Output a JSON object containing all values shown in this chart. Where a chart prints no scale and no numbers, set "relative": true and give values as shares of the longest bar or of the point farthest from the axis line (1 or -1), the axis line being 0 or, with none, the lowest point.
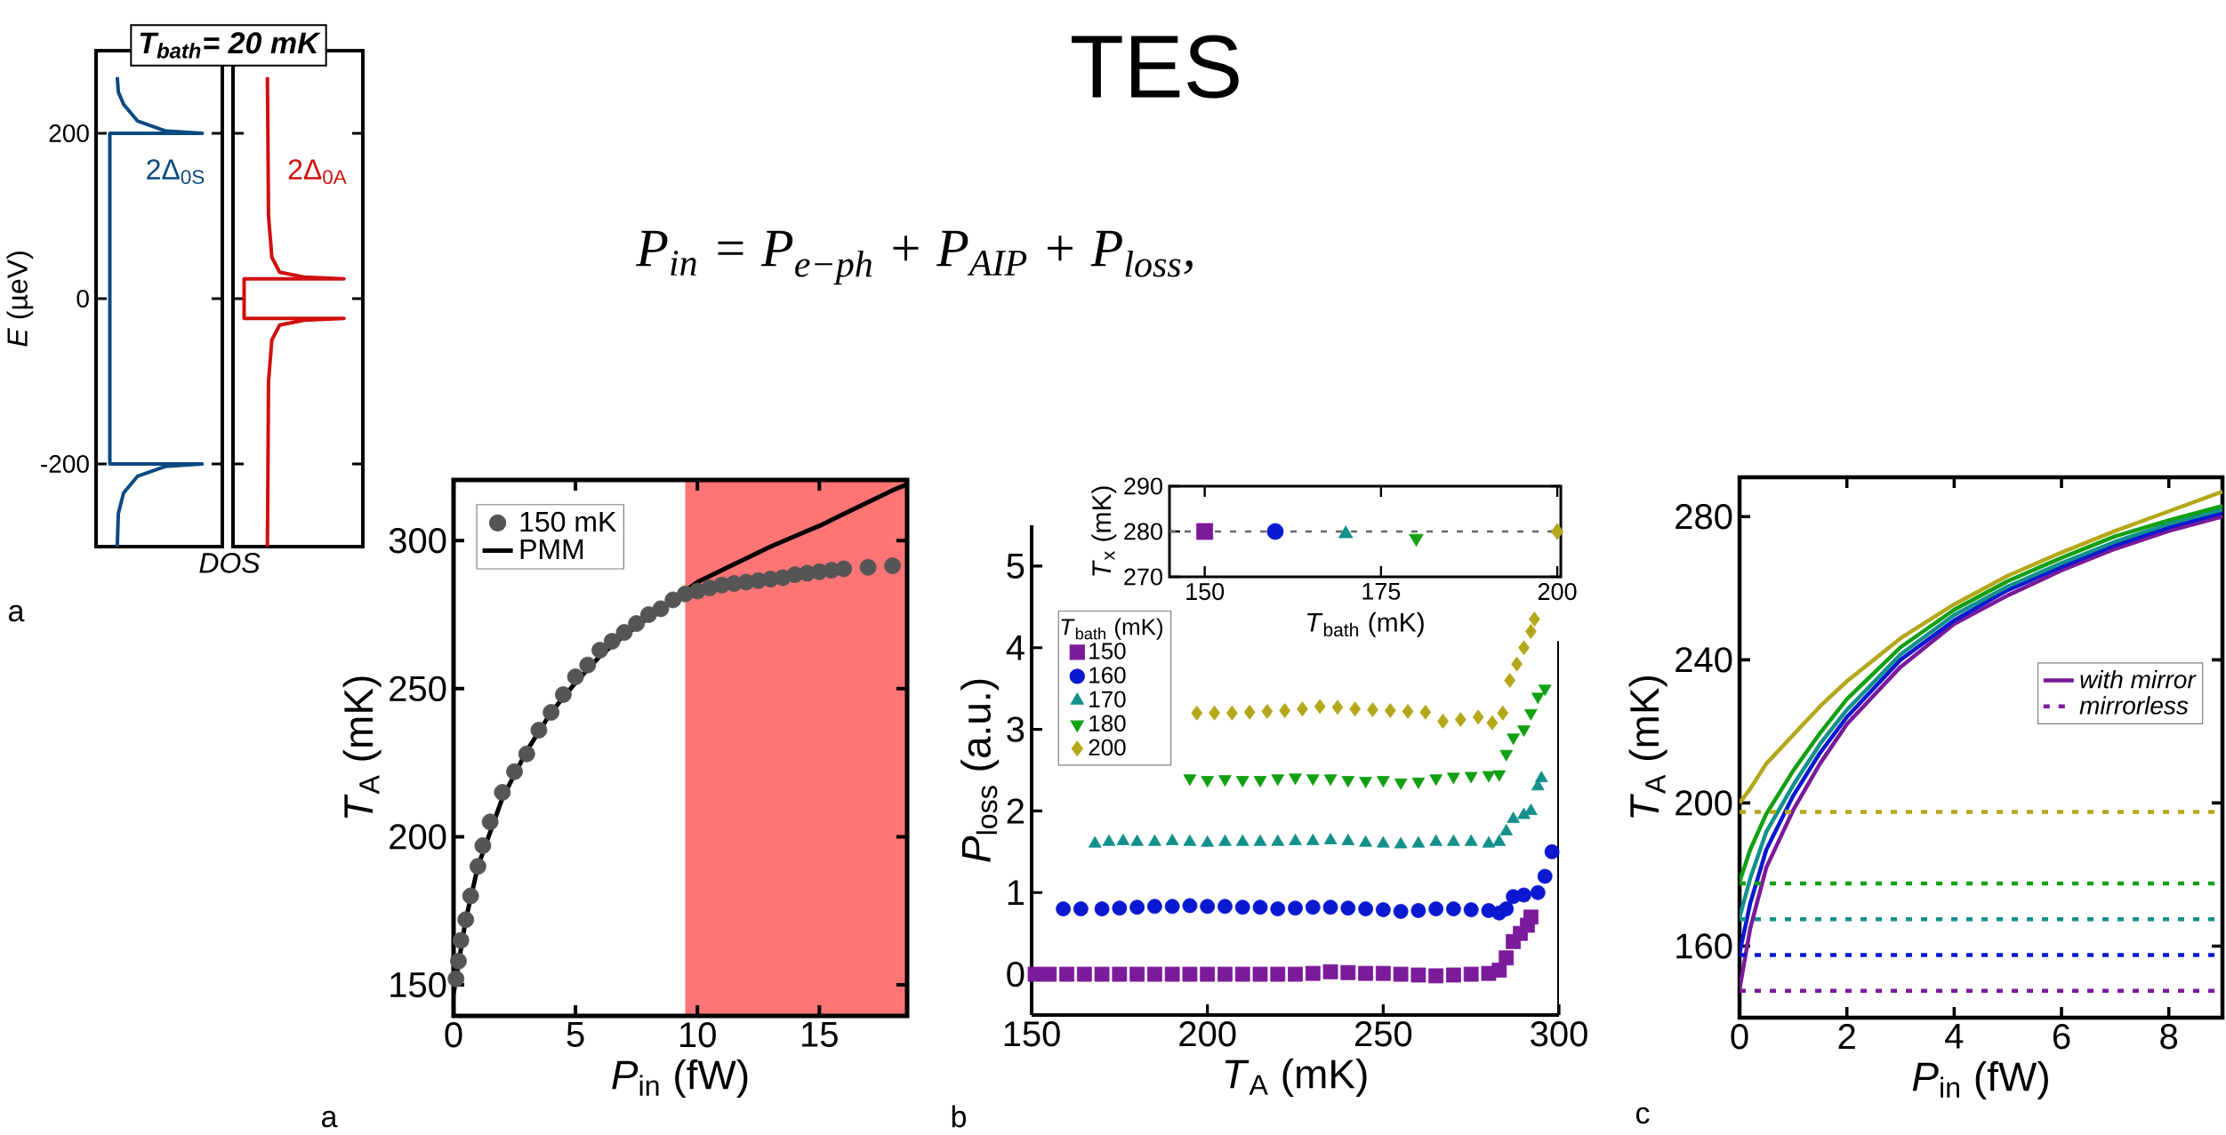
{
  "chart_data": [
    {
      "type": "line",
      "relative": true,
      "orientation": "horizontal",
      "title": "T$_{bath}$= 20 mK",
      "ylabel": "*E* (µeV)",
      "xlabel": "DOS",
      "ylim": [
        -300,
        300
      ],
      "yticks": [
        -200,
        0,
        200
      ],
      "annotations": [
        "a"
      ],
      "series": [
        {
          "name": "2Δ$_{0S}$",
          "color": "#0b4a80",
          "x": [
            268,
            250,
            235,
            215,
            203,
            200,
            200,
            -200,
            -200,
            -203,
            -215,
            -235,
            -260,
            -300
          ],
          "values": [
            0.2,
            0.21,
            0.26,
            0.39,
            0.65,
            1,
            0.13,
            0.13,
            1,
            0.65,
            0.39,
            0.26,
            0.21,
            0.2
          ]
        }
      ]
    },
    {
      "type": "line",
      "relative": true,
      "orientation": "horizontal",
      "ylim": [
        -300,
        300
      ],
      "yticks": [
        -200,
        0,
        200
      ],
      "tick_labels": false,
      "series": [
        {
          "name": "2Δ$_{0A}$",
          "color": "#d01010",
          "x": [
            268,
            100,
            50,
            32,
            26,
            24,
            24,
            -24,
            -24,
            -26,
            -32,
            -50,
            -100,
            -300
          ],
          "values": [
            0.31,
            0.32,
            0.35,
            0.42,
            0.64,
            1,
            0.1,
            0.1,
            1,
            0.64,
            0.42,
            0.35,
            0.32,
            0.31
          ]
        }
      ]
    },
    {
      "type": "other",
      "title": "TES",
      "annotations": [
        "P$_{in}$ = P$_{e−ph}$ + P$_{AIP}$ + P$_{loss}$,"
      ]
    },
    {
      "type": "scatter",
      "xlabel": "*P*$_{in}$ (fW)",
      "ylabel": "*T*$_{A}$ (mK)",
      "xlim": [
        0,
        18.6
      ],
      "xticks": [
        0,
        5,
        10,
        15
      ],
      "ylim": [
        139.5,
        320.5
      ],
      "yticks": [
        150,
        200,
        250,
        300
      ],
      "legend": "top left",
      "annotations": [
        "a"
      ],
      "bands": [
        {
          "axis": "x",
          "from": 9.5,
          "to": 18.6,
          "color": "#ff7575"
        }
      ],
      "series": [
        {
          "name": "150 mK",
          "type": "scatter",
          "marker": "circle",
          "color": "#555555",
          "x": [
            0.1,
            0.2,
            0.3,
            0.5,
            0.7,
            1,
            1.2,
            1.5,
            2,
            2.5,
            3,
            3.5,
            4,
            4.5,
            5,
            5.5,
            6,
            6.5,
            7,
            7.5,
            8,
            8.5,
            9,
            9.5,
            10,
            10.5,
            11,
            11.5,
            12,
            12.5,
            13,
            13.5,
            14,
            14.5,
            15,
            15.5,
            16,
            17,
            18
          ],
          "values": [
            152,
            158,
            165,
            172,
            180,
            190,
            197,
            205,
            215,
            222,
            228,
            236,
            242,
            248,
            254,
            258,
            263,
            266,
            269,
            272,
            275,
            277,
            280,
            282,
            283,
            284,
            285,
            285.5,
            286,
            286.5,
            287,
            287.5,
            288.5,
            289,
            289.5,
            290,
            290.5,
            291,
            291.5
          ]
        },
        {
          "name": "PMM",
          "type": "line",
          "color": "#000000",
          "x": [
            0,
            0.5,
            1,
            2,
            3,
            4,
            5,
            6,
            7,
            8,
            9,
            10,
            11,
            12,
            13,
            14,
            15,
            16,
            17,
            18,
            18.6
          ],
          "values": [
            147,
            172,
            190,
            213,
            229,
            242,
            252,
            261,
            268,
            274,
            280,
            286,
            290,
            294,
            298,
            301.5,
            305,
            309,
            313,
            317,
            319
          ]
        }
      ]
    },
    {
      "type": "scatter",
      "xlabel": "*T*$_{A}$ (mK)",
      "ylabel": "*P*$_{loss}$ (a.u.)",
      "xlim": [
        150,
        300
      ],
      "xticks": [
        150,
        200,
        250,
        300
      ],
      "ylim": [
        -0.5,
        5.5
      ],
      "yticks": [
        0,
        1,
        2,
        3,
        4,
        5
      ],
      "legend": "top left",
      "legend_title": "*T*$_{bath}$ (mK)",
      "annotations": [
        "b"
      ],
      "series": [
        {
          "name": "150",
          "marker": "square",
          "color": "#7b1a9a",
          "x": [
            151,
            155,
            160,
            165,
            170,
            175,
            180,
            185,
            190,
            195,
            200,
            205,
            210,
            215,
            220,
            225,
            230,
            235,
            240,
            245,
            250,
            255,
            260,
            265,
            270,
            275,
            280,
            283,
            285,
            287,
            289,
            291,
            292
          ],
          "values": [
            0,
            0,
            0,
            0,
            0,
            0,
            0,
            0,
            0,
            0,
            0,
            0,
            0,
            0,
            0,
            0,
            0.01,
            0.03,
            0.02,
            0.01,
            0.01,
            0,
            -0.01,
            -0.02,
            -0.01,
            0,
            0.01,
            0.05,
            0.2,
            0.4,
            0.5,
            0.6,
            0.7
          ]
        },
        {
          "name": "160",
          "marker": "circle",
          "color": "#0a18d0",
          "x": [
            159,
            164,
            170,
            175,
            180,
            185,
            190,
            195,
            200,
            205,
            210,
            215,
            220,
            225,
            230,
            235,
            240,
            245,
            250,
            255,
            260,
            265,
            270,
            275,
            280,
            283,
            285,
            287,
            290,
            294,
            296,
            298
          ],
          "values": [
            0.8,
            0.8,
            0.8,
            0.81,
            0.82,
            0.83,
            0.83,
            0.84,
            0.83,
            0.83,
            0.82,
            0.82,
            0.8,
            0.81,
            0.82,
            0.82,
            0.81,
            0.8,
            0.79,
            0.77,
            0.78,
            0.8,
            0.8,
            0.79,
            0.78,
            0.75,
            0.8,
            0.95,
            0.97,
            1.0,
            1.2,
            1.5
          ]
        },
        {
          "name": "170",
          "marker": "triangle",
          "color": "#13908c",
          "x": [
            168,
            172,
            176,
            180,
            185,
            190,
            195,
            200,
            205,
            210,
            215,
            220,
            225,
            230,
            235,
            240,
            245,
            250,
            255,
            260,
            265,
            270,
            275,
            280,
            283,
            285,
            287,
            290,
            292,
            294,
            295
          ],
          "values": [
            1.6,
            1.62,
            1.63,
            1.62,
            1.62,
            1.63,
            1.62,
            1.61,
            1.62,
            1.62,
            1.62,
            1.62,
            1.63,
            1.63,
            1.64,
            1.63,
            1.61,
            1.6,
            1.59,
            1.6,
            1.62,
            1.62,
            1.62,
            1.6,
            1.62,
            1.75,
            1.9,
            1.95,
            2.0,
            2.3,
            2.4
          ]
        },
        {
          "name": "180",
          "marker": "triangle-down",
          "color": "#12a012",
          "x": [
            195,
            200,
            205,
            210,
            215,
            220,
            225,
            230,
            235,
            240,
            245,
            250,
            255,
            260,
            265,
            270,
            275,
            280,
            283,
            285,
            287,
            290,
            292,
            294,
            296
          ],
          "values": [
            2.4,
            2.38,
            2.39,
            2.38,
            2.38,
            2.4,
            2.41,
            2.4,
            2.4,
            2.38,
            2.37,
            2.38,
            2.35,
            2.36,
            2.4,
            2.42,
            2.43,
            2.44,
            2.45,
            2.7,
            2.9,
            3.0,
            3.2,
            3.4,
            3.5
          ]
        },
        {
          "name": "200",
          "marker": "diamond",
          "color": "#b4a719",
          "x": [
            197,
            202,
            207,
            212,
            217,
            222,
            227,
            232,
            237,
            242,
            247,
            252,
            257,
            262,
            267,
            272,
            277,
            281,
            284,
            286,
            288,
            290,
            292,
            293
          ],
          "values": [
            3.2,
            3.2,
            3.2,
            3.21,
            3.22,
            3.23,
            3.25,
            3.28,
            3.27,
            3.25,
            3.24,
            3.23,
            3.22,
            3.21,
            3.1,
            3.12,
            3.15,
            3.08,
            3.2,
            3.6,
            3.8,
            4.0,
            4.2,
            4.35
          ]
        }
      ]
    },
    {
      "type": "scatter",
      "xlabel": "*T*$_{bath}$ (mK)",
      "ylabel": "*T*$_{x}$ (mK)",
      "xlim": [
        145,
        200.5
      ],
      "xticks": [
        150,
        175,
        200
      ],
      "ylim": [
        270,
        290
      ],
      "yticks": [
        270,
        280,
        290
      ],
      "ref_lines": [
        {
          "axis": "y",
          "value": 280,
          "color": "#666666",
          "line_style": "dotted"
        }
      ],
      "series": [
        {
          "marker": "square",
          "color": "#7b1a9a",
          "x": [
            150
          ],
          "values": [
            280
          ]
        },
        {
          "marker": "circle",
          "color": "#0a18d0",
          "x": [
            160
          ],
          "values": [
            280
          ]
        },
        {
          "marker": "triangle",
          "color": "#13908c",
          "x": [
            170
          ],
          "values": [
            279.5
          ]
        },
        {
          "marker": "triangle-down",
          "color": "#12a012",
          "x": [
            180
          ],
          "values": [
            278.5
          ]
        },
        {
          "marker": "diamond",
          "color": "#b4a719",
          "x": [
            200
          ],
          "values": [
            280
          ]
        }
      ]
    },
    {
      "type": "line",
      "xlabel": "*P*$_{in}$ (fW)",
      "ylabel": "*T*$_{A}$ (mK)",
      "xlim": [
        0,
        9
      ],
      "xticks": [
        0,
        2,
        4,
        6,
        8
      ],
      "ylim": [
        140,
        291
      ],
      "yticks": [
        160,
        200,
        240,
        280
      ],
      "legend": "right",
      "annotations": [
        "c"
      ],
      "series": [
        {
          "name": "with mirror",
          "color": "#7a1a9a",
          "line_style": "solid",
          "x": [
            0,
            0.2,
            0.5,
            1,
            1.5,
            2,
            3,
            4,
            5,
            6,
            7,
            8,
            9
          ],
          "values": [
            148,
            165,
            182,
            198,
            211,
            222,
            238,
            250,
            258,
            265,
            271,
            276,
            280
          ]
        },
        {
          "color": "#0a18d0",
          "line_style": "solid",
          "x": [
            0,
            0.2,
            0.5,
            1,
            1.5,
            2,
            3,
            4,
            5,
            6,
            7,
            8,
            9
          ],
          "values": [
            158,
            172,
            187,
            202,
            214,
            224,
            240,
            251,
            259.5,
            266,
            272,
            277,
            281
          ]
        },
        {
          "color": "#13908c",
          "line_style": "solid",
          "x": [
            0,
            0.2,
            0.5,
            1,
            1.5,
            2,
            3,
            4,
            5,
            6,
            7,
            8,
            9
          ],
          "values": [
            168,
            179,
            192,
            205,
            216.5,
            226,
            241.5,
            252.5,
            260.5,
            267,
            273,
            278,
            282
          ]
        },
        {
          "color": "#12a012",
          "line_style": "solid",
          "x": [
            0,
            0.2,
            0.5,
            1,
            1.5,
            2,
            3,
            4,
            5,
            6,
            7,
            8,
            9
          ],
          "values": [
            178,
            187,
            197,
            209,
            219.5,
            229,
            243.5,
            254,
            262,
            268.5,
            274.5,
            279,
            283
          ]
        },
        {
          "color": "#b4a719",
          "line_style": "solid",
          "x": [
            0,
            0.2,
            0.5,
            1,
            1.5,
            2,
            3,
            4,
            5,
            6,
            7,
            8,
            9
          ],
          "values": [
            200,
            204,
            211,
            219,
            227,
            234,
            246,
            255.5,
            263.5,
            270,
            276,
            281.5,
            287
          ]
        },
        {
          "name": "mirrorless",
          "color": "#7a1a9a",
          "line_style": "dotted",
          "x": [
            0,
            9
          ],
          "values": [
            147.5,
            147.5
          ]
        },
        {
          "color": "#0a18d0",
          "line_style": "dotted",
          "x": [
            0,
            9
          ],
          "values": [
            157.5,
            157.5
          ]
        },
        {
          "color": "#13908c",
          "line_style": "dotted",
          "x": [
            0,
            9
          ],
          "values": [
            167.5,
            167.5
          ]
        },
        {
          "color": "#12a012",
          "line_style": "dotted",
          "x": [
            0,
            9
          ],
          "values": [
            177.5,
            177.5
          ]
        },
        {
          "color": "#b4a719",
          "line_style": "dotted",
          "x": [
            0,
            9
          ],
          "values": [
            197.5,
            197.5
          ]
        }
      ]
    }
  ]
}
